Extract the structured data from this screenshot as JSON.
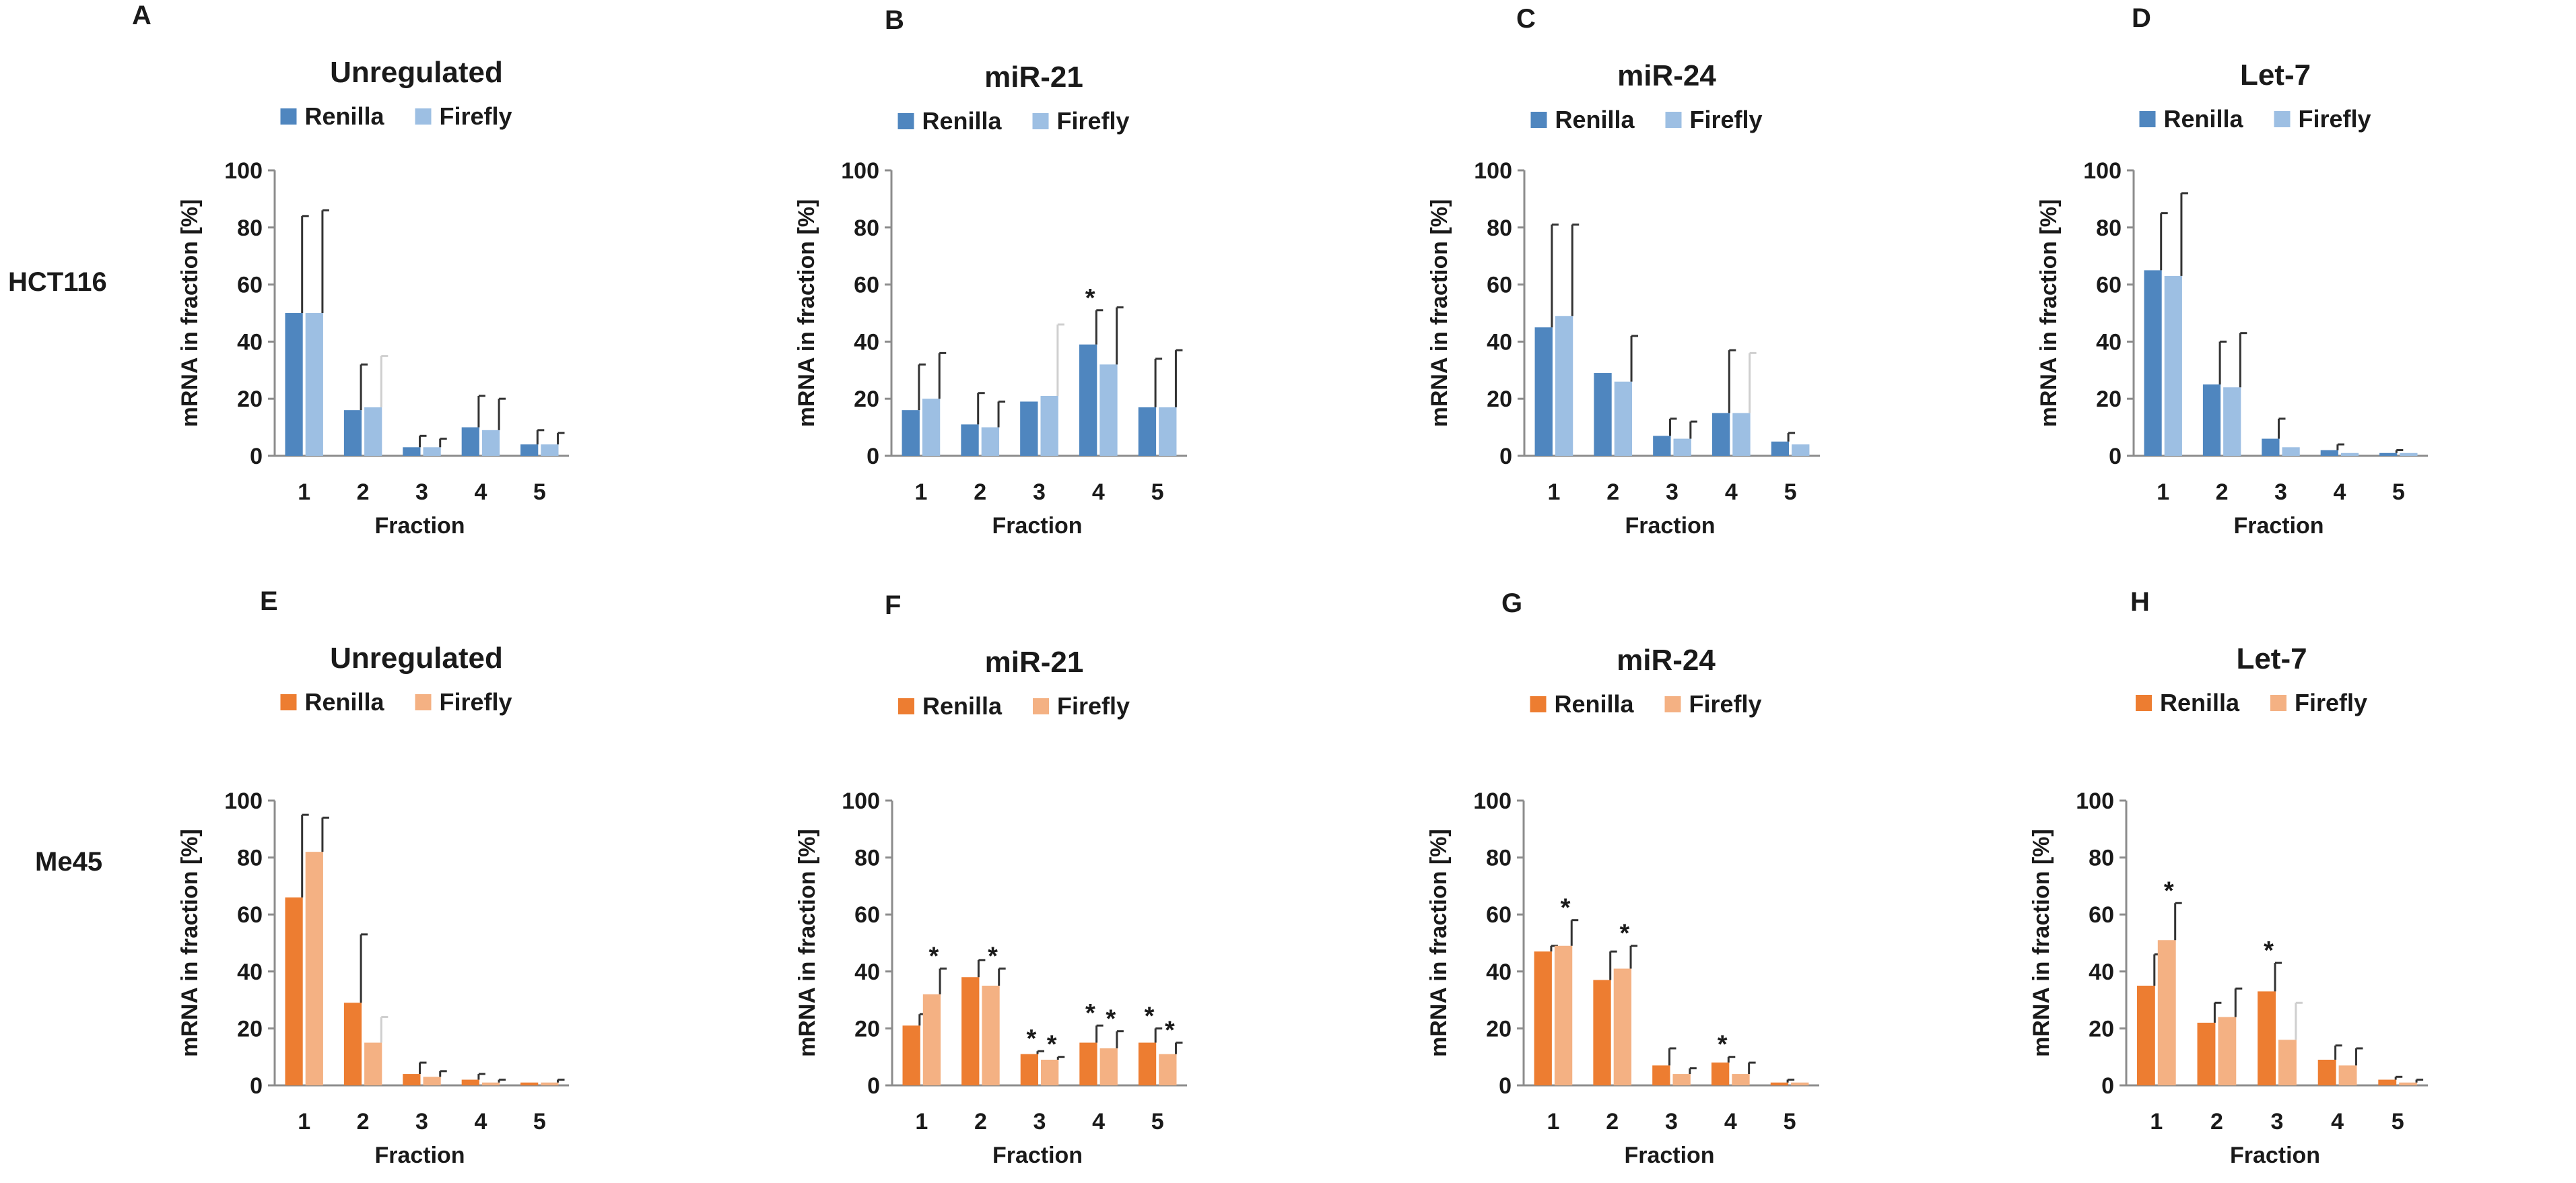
{
  "colors": {
    "hct_renilla": "#4f86bf",
    "hct_firefly": "#9dbfe3",
    "me45_renilla": "#ed7d31",
    "me45_firefly": "#f4b183"
  },
  "row_labels": [
    "HCT116",
    "Me45"
  ],
  "chart_data": [
    {
      "panel": "A",
      "cell_line": "HCT116",
      "type": "bar",
      "title": "Unregulated",
      "xlabel": "Fraction",
      "ylabel": "mRNA in fraction [%]",
      "ylim": [
        0,
        100
      ],
      "yticks": [
        "0",
        "20",
        "40",
        "60",
        "80",
        "100"
      ],
      "categories": [
        "1",
        "2",
        "3",
        "4",
        "5"
      ],
      "legend": [
        "Renilla",
        "Firefly"
      ],
      "series": [
        {
          "name": "Renilla",
          "values": [
            50,
            16,
            3,
            10,
            4
          ],
          "errors": [
            34,
            16,
            4,
            11,
            5
          ],
          "significant": [
            false,
            false,
            false,
            false,
            false
          ]
        },
        {
          "name": "Firefly",
          "values": [
            50,
            17,
            3,
            9,
            4
          ],
          "errors": [
            36,
            18,
            3,
            11,
            4
          ],
          "significant": [
            false,
            false,
            false,
            false,
            false
          ]
        }
      ]
    },
    {
      "panel": "B",
      "cell_line": "HCT116",
      "type": "bar",
      "title": "miR-21",
      "xlabel": "Fraction",
      "ylabel": "mRNA in fraction [%]",
      "ylim": [
        0,
        100
      ],
      "yticks": [
        "0",
        "20",
        "40",
        "60",
        "80",
        "100"
      ],
      "categories": [
        "1",
        "2",
        "3",
        "4",
        "5"
      ],
      "legend": [
        "Renilla",
        "Firefly"
      ],
      "series": [
        {
          "name": "Renilla",
          "values": [
            16,
            11,
            19,
            39,
            17
          ],
          "errors": [
            16,
            11,
            0,
            12,
            17
          ],
          "significant": [
            false,
            false,
            false,
            true,
            false
          ]
        },
        {
          "name": "Firefly",
          "values": [
            20,
            10,
            21,
            32,
            17
          ],
          "errors": [
            16,
            9,
            25,
            20,
            20
          ],
          "significant": [
            false,
            false,
            false,
            false,
            false
          ]
        }
      ]
    },
    {
      "panel": "C",
      "cell_line": "HCT116",
      "type": "bar",
      "title": "miR-24",
      "xlabel": "Fraction",
      "ylabel": "mRNA in fraction [%]",
      "ylim": [
        0,
        100
      ],
      "yticks": [
        "0",
        "20",
        "40",
        "60",
        "80",
        "100"
      ],
      "categories": [
        "1",
        "2",
        "3",
        "4",
        "5"
      ],
      "legend": [
        "Renilla",
        "Firefly"
      ],
      "series": [
        {
          "name": "Renilla",
          "values": [
            45,
            29,
            7,
            15,
            5
          ],
          "errors": [
            36,
            0,
            6,
            22,
            3
          ],
          "significant": [
            false,
            false,
            false,
            false,
            false
          ]
        },
        {
          "name": "Firefly",
          "values": [
            49,
            26,
            6,
            15,
            4
          ],
          "errors": [
            32,
            16,
            6,
            21,
            0
          ],
          "significant": [
            false,
            false,
            false,
            false,
            false
          ]
        }
      ]
    },
    {
      "panel": "D",
      "cell_line": "HCT116",
      "type": "bar",
      "title": "Let-7",
      "xlabel": "Fraction",
      "ylabel": "mRNA in fraction [%]",
      "ylim": [
        0,
        100
      ],
      "yticks": [
        "0",
        "20",
        "40",
        "60",
        "80",
        "100"
      ],
      "categories": [
        "1",
        "2",
        "3",
        "4",
        "5"
      ],
      "legend": [
        "Renilla",
        "Firefly"
      ],
      "series": [
        {
          "name": "Renilla",
          "values": [
            65,
            25,
            6,
            2,
            1
          ],
          "errors": [
            20,
            15,
            7,
            2,
            1
          ],
          "significant": [
            false,
            false,
            false,
            false,
            false
          ]
        },
        {
          "name": "Firefly",
          "values": [
            63,
            24,
            3,
            1,
            1
          ],
          "errors": [
            29,
            19,
            0,
            0,
            0
          ],
          "significant": [
            false,
            false,
            false,
            false,
            false
          ]
        }
      ]
    },
    {
      "panel": "E",
      "cell_line": "Me45",
      "type": "bar",
      "title": "Unregulated",
      "xlabel": "Fraction",
      "ylabel": "mRNA in fraction [%]",
      "ylim": [
        0,
        100
      ],
      "yticks": [
        "0",
        "20",
        "40",
        "60",
        "80",
        "100"
      ],
      "categories": [
        "1",
        "2",
        "3",
        "4",
        "5"
      ],
      "legend": [
        "Renilla",
        "Firefly"
      ],
      "series": [
        {
          "name": "Renilla",
          "values": [
            66,
            29,
            4,
            2,
            1
          ],
          "errors": [
            29,
            24,
            4,
            2,
            0
          ],
          "significant": [
            false,
            false,
            false,
            false,
            false
          ]
        },
        {
          "name": "Firefly",
          "values": [
            82,
            15,
            3,
            1,
            1
          ],
          "errors": [
            12,
            9,
            2,
            1,
            1
          ],
          "significant": [
            false,
            false,
            false,
            false,
            false
          ]
        }
      ]
    },
    {
      "panel": "F",
      "cell_line": "Me45",
      "type": "bar",
      "title": "miR-21",
      "xlabel": "Fraction",
      "ylabel": "mRNA in fraction [%]",
      "ylim": [
        0,
        100
      ],
      "yticks": [
        "0",
        "20",
        "40",
        "60",
        "80",
        "100"
      ],
      "categories": [
        "1",
        "2",
        "3",
        "4",
        "5"
      ],
      "legend": [
        "Renilla",
        "Firefly"
      ],
      "series": [
        {
          "name": "Renilla",
          "values": [
            21,
            38,
            11,
            15,
            15
          ],
          "errors": [
            4,
            6,
            1,
            6,
            5
          ],
          "significant": [
            false,
            false,
            true,
            true,
            true
          ]
        },
        {
          "name": "Firefly",
          "values": [
            32,
            35,
            9,
            13,
            11
          ],
          "errors": [
            9,
            6,
            1,
            6,
            4
          ],
          "significant": [
            true,
            true,
            true,
            true,
            true
          ]
        }
      ]
    },
    {
      "panel": "G",
      "cell_line": "Me45",
      "type": "bar",
      "title": "miR-24",
      "xlabel": "Fraction",
      "ylabel": "mRNA in fraction [%]",
      "ylim": [
        0,
        100
      ],
      "yticks": [
        "0",
        "20",
        "40",
        "60",
        "80",
        "100"
      ],
      "categories": [
        "1",
        "2",
        "3",
        "4",
        "5"
      ],
      "legend": [
        "Renilla",
        "Firefly"
      ],
      "series": [
        {
          "name": "Renilla",
          "values": [
            47,
            37,
            7,
            8,
            1
          ],
          "errors": [
            2,
            10,
            6,
            2,
            1
          ],
          "significant": [
            false,
            false,
            false,
            true,
            false
          ]
        },
        {
          "name": "Firefly",
          "values": [
            49,
            41,
            4,
            4,
            1
          ],
          "errors": [
            9,
            8,
            2,
            4,
            0
          ],
          "significant": [
            true,
            true,
            false,
            false,
            false
          ]
        }
      ]
    },
    {
      "panel": "H",
      "cell_line": "Me45",
      "type": "bar",
      "title": "Let-7",
      "xlabel": "Fraction",
      "ylabel": "mRNA in fraction [%]",
      "ylim": [
        0,
        100
      ],
      "yticks": [
        "0",
        "20",
        "40",
        "60",
        "80",
        "100"
      ],
      "categories": [
        "1",
        "2",
        "3",
        "4",
        "5"
      ],
      "legend": [
        "Renilla",
        "Firefly"
      ],
      "series": [
        {
          "name": "Renilla",
          "values": [
            35,
            22,
            33,
            9,
            2
          ],
          "errors": [
            11,
            7,
            10,
            5,
            1
          ],
          "significant": [
            false,
            false,
            true,
            false,
            false
          ]
        },
        {
          "name": "Firefly",
          "values": [
            51,
            24,
            16,
            7,
            1
          ],
          "errors": [
            13,
            10,
            13,
            6,
            1
          ],
          "significant": [
            true,
            false,
            false,
            false,
            false
          ]
        }
      ]
    }
  ]
}
